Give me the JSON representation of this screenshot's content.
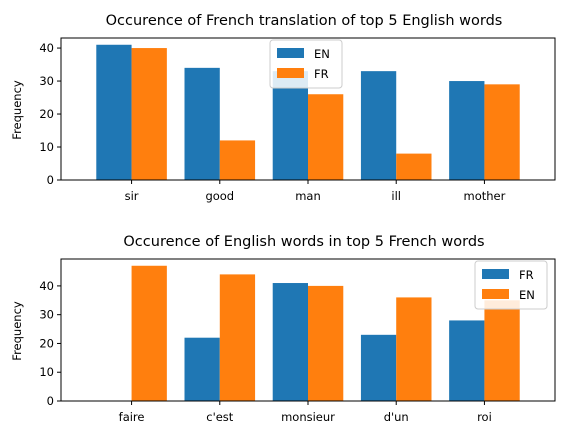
{
  "chart_data": [
    {
      "type": "bar",
      "title": "Occurence of French translation of top 5 English words",
      "xlabel": "",
      "ylabel": "Frequency",
      "categories": [
        "sir",
        "good",
        "man",
        "ill",
        "mother"
      ],
      "series": [
        {
          "name": "EN",
          "color": "#1f77b4",
          "values": [
            41,
            34,
            33,
            33,
            30
          ]
        },
        {
          "name": "FR",
          "color": "#ff7f0e",
          "values": [
            40,
            12,
            26,
            8,
            29
          ]
        }
      ],
      "ylim": [
        0,
        43.05
      ],
      "yticks": [
        0,
        10,
        20,
        30,
        40
      ],
      "legend_position": "top-center",
      "grid": false
    },
    {
      "type": "bar",
      "title": "Occurence of English words in top 5 French words",
      "xlabel": "",
      "ylabel": "Frequency",
      "categories": [
        "faire",
        "c'est",
        "monsieur",
        "d'un",
        "roi"
      ],
      "series": [
        {
          "name": "FR",
          "color": "#1f77b4",
          "values": [
            0,
            22,
            41,
            23,
            28
          ]
        },
        {
          "name": "EN",
          "color": "#ff7f0e",
          "values": [
            47,
            44,
            40,
            36,
            35
          ]
        }
      ],
      "ylim": [
        0,
        49.35
      ],
      "yticks": [
        0,
        10,
        20,
        30,
        40
      ],
      "legend_position": "top-right",
      "grid": false
    }
  ]
}
